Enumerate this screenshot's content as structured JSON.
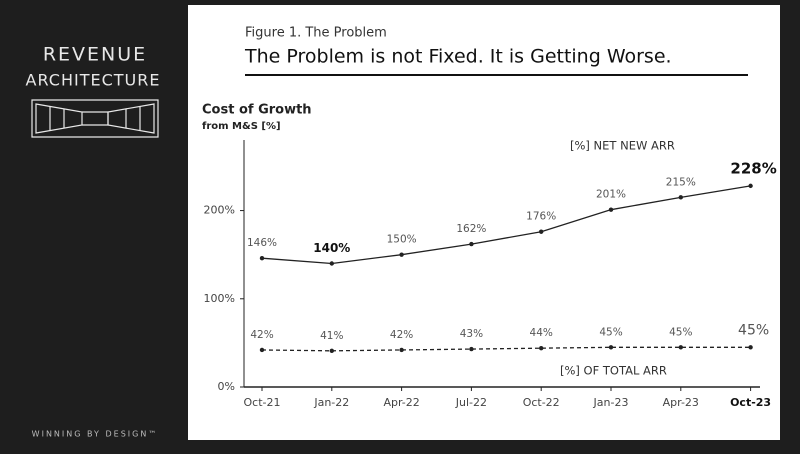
{
  "logo": {
    "line1": "REVENUE",
    "line2": "ARCHITECTURE"
  },
  "footer": "WINNING BY DESIGN™",
  "figure_label": "Figure 1. The Problem",
  "headline": "The Problem is not Fixed. It is Getting Worse.",
  "chart_data": {
    "type": "line",
    "title": "Cost of Growth",
    "subtitle": "from M&S [%]",
    "categories": [
      "Oct-21",
      "Jan-22",
      "Apr-22",
      "Jul-22",
      "Oct-22",
      "Jan-23",
      "Apr-23",
      "Oct-23"
    ],
    "category_emphasis": [
      7
    ],
    "series": [
      {
        "name": "[%] NET NEW ARR",
        "color": "#222222",
        "style": "solid",
        "values": [
          146,
          140,
          150,
          162,
          176,
          201,
          215,
          228
        ],
        "value_labels": [
          "146%",
          "140%",
          "150%",
          "162%",
          "176%",
          "201%",
          "215%",
          "228%"
        ],
        "emphasis": [
          1,
          7
        ]
      },
      {
        "name": "[%] OF TOTAL ARR",
        "color": "#222222",
        "style": "dashed",
        "values": [
          42,
          41,
          42,
          43,
          44,
          45,
          45,
          45
        ],
        "value_labels": [
          "42%",
          "41%",
          "42%",
          "43%",
          "44%",
          "45%",
          "45%",
          "45%"
        ],
        "emphasis": []
      }
    ],
    "ylim": [
      0,
      280
    ],
    "yticks": [
      {
        "value": 0,
        "label": "0%"
      },
      {
        "value": 100,
        "label": "100%"
      },
      {
        "value": 200,
        "label": "200%"
      }
    ]
  }
}
